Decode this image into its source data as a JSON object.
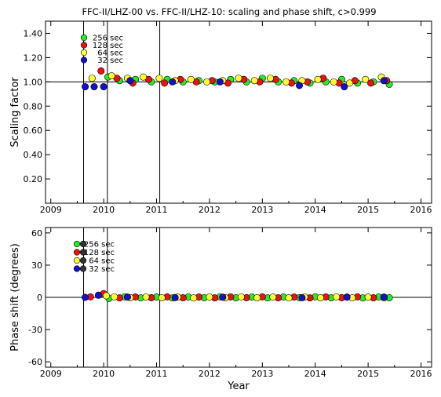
{
  "title": "FFC-II/LHZ-00 vs. FFC-II/LHZ-10: scaling and phase shift, c>0.999",
  "colors": {
    "green": "#22ee22",
    "red": "#ee1111",
    "yellow": "#ffff33",
    "blue": "#1111cc",
    "dark": "#333333"
  },
  "legend": [
    {
      "label": "256 sec",
      "color": "#22ee22"
    },
    {
      "label": "128 sec",
      "color": "#ee1111"
    },
    {
      "label": "64 sec",
      "color": "#ffff33"
    },
    {
      "label": "32 sec",
      "color": "#1111cc"
    }
  ],
  "chart_data": [
    {
      "type": "scatter",
      "ylabel": "Scaling factor",
      "xlabel": "",
      "xlim": [
        2008.9,
        2016.2
      ],
      "ylim": [
        0.0,
        1.5
      ],
      "x_ticks": [
        2009,
        2010,
        2011,
        2012,
        2013,
        2014,
        2015,
        2016
      ],
      "y_ticks": [
        {
          "v": 0.2,
          "label": "0.20"
        },
        {
          "v": 0.4,
          "label": "0.40"
        },
        {
          "v": 0.6,
          "label": "0.60"
        },
        {
          "v": 0.8,
          "label": "0.80"
        },
        {
          "v": 1.0,
          "label": "1.00"
        },
        {
          "v": 1.2,
          "label": "1.20"
        },
        {
          "v": 1.4,
          "label": "1.40"
        }
      ],
      "ref_y": 1.0,
      "vlines": [
        2009.62,
        2010.07,
        2011.06
      ],
      "series": [
        {
          "name": "256 sec",
          "points": [
            [
              2010.08,
              1.04
            ],
            [
              2010.3,
              1.01
            ],
            [
              2010.6,
              1.02
            ],
            [
              2010.9,
              1.0
            ],
            [
              2011.2,
              1.02
            ],
            [
              2011.5,
              1.0
            ],
            [
              2011.8,
              1.01
            ],
            [
              2012.1,
              1.0
            ],
            [
              2012.4,
              1.02
            ],
            [
              2012.7,
              1.0
            ],
            [
              2013.0,
              1.03
            ],
            [
              2013.3,
              1.0
            ],
            [
              2013.6,
              1.01
            ],
            [
              2013.9,
              0.99
            ],
            [
              2014.2,
              1.0
            ],
            [
              2014.5,
              1.02
            ],
            [
              2014.8,
              0.99
            ],
            [
              2015.1,
              1.0
            ],
            [
              2015.4,
              0.98
            ]
          ]
        },
        {
          "name": "128 sec",
          "points": [
            [
              2009.95,
              1.09
            ],
            [
              2010.25,
              1.03
            ],
            [
              2010.55,
              0.99
            ],
            [
              2010.85,
              1.02
            ],
            [
              2011.15,
              0.99
            ],
            [
              2011.45,
              1.02
            ],
            [
              2011.75,
              1.0
            ],
            [
              2012.05,
              1.01
            ],
            [
              2012.35,
              0.99
            ],
            [
              2012.65,
              1.02
            ],
            [
              2012.95,
              1.0
            ],
            [
              2013.25,
              1.02
            ],
            [
              2013.55,
              0.99
            ],
            [
              2013.85,
              1.0
            ],
            [
              2014.15,
              1.03
            ],
            [
              2014.45,
              0.99
            ],
            [
              2014.75,
              1.01
            ],
            [
              2015.05,
              0.99
            ],
            [
              2015.35,
              1.01
            ]
          ]
        },
        {
          "name": "64 sec",
          "points": [
            [
              2009.78,
              1.03
            ],
            [
              2010.15,
              1.05
            ],
            [
              2010.45,
              1.03
            ],
            [
              2010.75,
              1.04
            ],
            [
              2011.05,
              1.03
            ],
            [
              2011.35,
              1.01
            ],
            [
              2011.65,
              1.02
            ],
            [
              2011.95,
              1.0
            ],
            [
              2012.25,
              1.01
            ],
            [
              2012.55,
              1.03
            ],
            [
              2012.85,
              1.01
            ],
            [
              2013.15,
              1.03
            ],
            [
              2013.45,
              1.0
            ],
            [
              2013.75,
              1.01
            ],
            [
              2014.05,
              1.02
            ],
            [
              2014.35,
              1.0
            ],
            [
              2014.65,
              0.99
            ],
            [
              2014.95,
              1.02
            ],
            [
              2015.25,
              1.04
            ]
          ]
        },
        {
          "name": "32 sec",
          "points": [
            [
              2009.65,
              0.96
            ],
            [
              2009.82,
              0.96
            ],
            [
              2010.0,
              0.96
            ],
            [
              2010.5,
              1.01
            ],
            [
              2011.3,
              1.0
            ],
            [
              2012.2,
              1.0
            ],
            [
              2013.7,
              0.97
            ],
            [
              2014.55,
              0.96
            ],
            [
              2015.3,
              1.01
            ]
          ]
        }
      ]
    },
    {
      "type": "scatter",
      "ylabel": "Phase shift (degrees)",
      "xlabel": "Year",
      "xlim": [
        2008.9,
        2016.2
      ],
      "ylim": [
        -65,
        65
      ],
      "x_ticks": [
        2009,
        2010,
        2011,
        2012,
        2013,
        2014,
        2015,
        2016
      ],
      "y_ticks": [
        {
          "v": -60,
          "label": "-60"
        },
        {
          "v": -30,
          "label": "-30"
        },
        {
          "v": 0,
          "label": "0"
        },
        {
          "v": 30,
          "label": "30"
        },
        {
          "v": 60,
          "label": "60"
        }
      ],
      "ref_y": 0,
      "vlines": [
        2009.62,
        2010.07,
        2011.06
      ],
      "series": [
        {
          "name": "256 sec",
          "points": [
            [
              2010.1,
              -1.0
            ],
            [
              2010.4,
              0.5
            ],
            [
              2010.7,
              -0.5
            ],
            [
              2011.0,
              0.3
            ],
            [
              2011.3,
              -0.5
            ],
            [
              2011.6,
              0.4
            ],
            [
              2011.9,
              -0.3
            ],
            [
              2012.2,
              0.5
            ],
            [
              2012.5,
              -0.4
            ],
            [
              2012.8,
              0.3
            ],
            [
              2013.1,
              -0.5
            ],
            [
              2013.4,
              0.4
            ],
            [
              2013.7,
              -0.3
            ],
            [
              2014.0,
              0.5
            ],
            [
              2014.3,
              -0.4
            ],
            [
              2014.6,
              0.3
            ],
            [
              2014.9,
              -0.5
            ],
            [
              2015.2,
              0.4
            ],
            [
              2015.4,
              -0.3
            ]
          ]
        },
        {
          "name": "128 sec",
          "points": [
            [
              2009.75,
              0.5
            ],
            [
              2010.0,
              3.5
            ],
            [
              2010.3,
              -0.5
            ],
            [
              2010.6,
              0.4
            ],
            [
              2010.9,
              -0.3
            ],
            [
              2011.2,
              0.5
            ],
            [
              2011.5,
              -0.4
            ],
            [
              2011.8,
              0.3
            ],
            [
              2012.1,
              -0.5
            ],
            [
              2012.4,
              0.4
            ],
            [
              2012.7,
              -0.3
            ],
            [
              2013.0,
              0.5
            ],
            [
              2013.3,
              -0.4
            ],
            [
              2013.6,
              0.3
            ],
            [
              2013.9,
              -0.5
            ],
            [
              2014.2,
              0.4
            ],
            [
              2014.5,
              -0.3
            ],
            [
              2014.8,
              0.5
            ],
            [
              2015.1,
              -0.4
            ]
          ]
        },
        {
          "name": "64 sec",
          "points": [
            [
              2010.05,
              1.5
            ],
            [
              2010.2,
              0.5
            ],
            [
              2010.5,
              -0.3
            ],
            [
              2010.8,
              0.4
            ],
            [
              2011.1,
              -0.4
            ],
            [
              2011.4,
              0.3
            ],
            [
              2011.7,
              -0.5
            ],
            [
              2012.0,
              0.4
            ],
            [
              2012.3,
              -0.3
            ],
            [
              2012.6,
              0.5
            ],
            [
              2012.9,
              -0.4
            ],
            [
              2013.2,
              0.3
            ],
            [
              2013.5,
              -0.5
            ],
            [
              2013.8,
              0.4
            ],
            [
              2014.1,
              -0.3
            ],
            [
              2014.4,
              0.5
            ],
            [
              2014.7,
              -0.4
            ],
            [
              2015.0,
              0.3
            ],
            [
              2015.3,
              -0.5
            ]
          ]
        },
        {
          "name": "32 sec",
          "points": [
            [
              2009.65,
              0.0
            ],
            [
              2009.9,
              2.0
            ],
            [
              2010.45,
              0.3
            ],
            [
              2011.35,
              -0.2
            ],
            [
              2012.25,
              0.2
            ],
            [
              2013.75,
              -0.3
            ],
            [
              2014.6,
              0.2
            ],
            [
              2015.3,
              0.3
            ]
          ]
        }
      ]
    }
  ]
}
